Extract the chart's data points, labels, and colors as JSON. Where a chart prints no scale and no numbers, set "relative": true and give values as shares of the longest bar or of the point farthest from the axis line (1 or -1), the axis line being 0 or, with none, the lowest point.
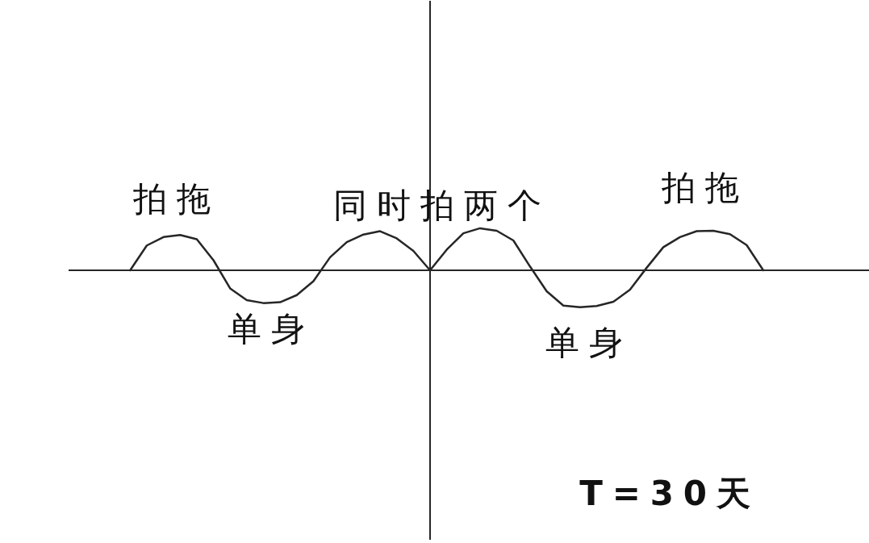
{
  "chart_data": {
    "type": "line",
    "relative": true,
    "categories": [
      null,
      null,
      null,
      null,
      null,
      null,
      null,
      null,
      null,
      null,
      null,
      null,
      null,
      null,
      null,
      null,
      null,
      null,
      null,
      null,
      null,
      null,
      null,
      null,
      null,
      null,
      null,
      null,
      null,
      null,
      null,
      null,
      null,
      null,
      null,
      null,
      null,
      null,
      null,
      null,
      null
    ],
    "values": [
      null,
      null,
      0,
      0.59,
      0.79,
      0.84,
      0.74,
      0.24,
      -0.43,
      -0.71,
      -0.78,
      -0.76,
      -0.59,
      -0.26,
      0.31,
      0.67,
      0.85,
      0.93,
      0.76,
      0.46,
      0,
      0.49,
      0.88,
      1,
      0.94,
      0.71,
      0.09,
      -0.5,
      -0.84,
      -0.88,
      -0.85,
      -0.75,
      -0.46,
      0.06,
      0.55,
      0.79,
      0.93,
      0.94,
      0.86,
      0.6,
      0
    ],
    "color": "#262626",
    "line_style": "solid",
    "annotations": [
      "拍拖",
      "单身",
      "同时拍两个",
      "拍拖",
      "单身",
      "T=30天"
    ]
  }
}
